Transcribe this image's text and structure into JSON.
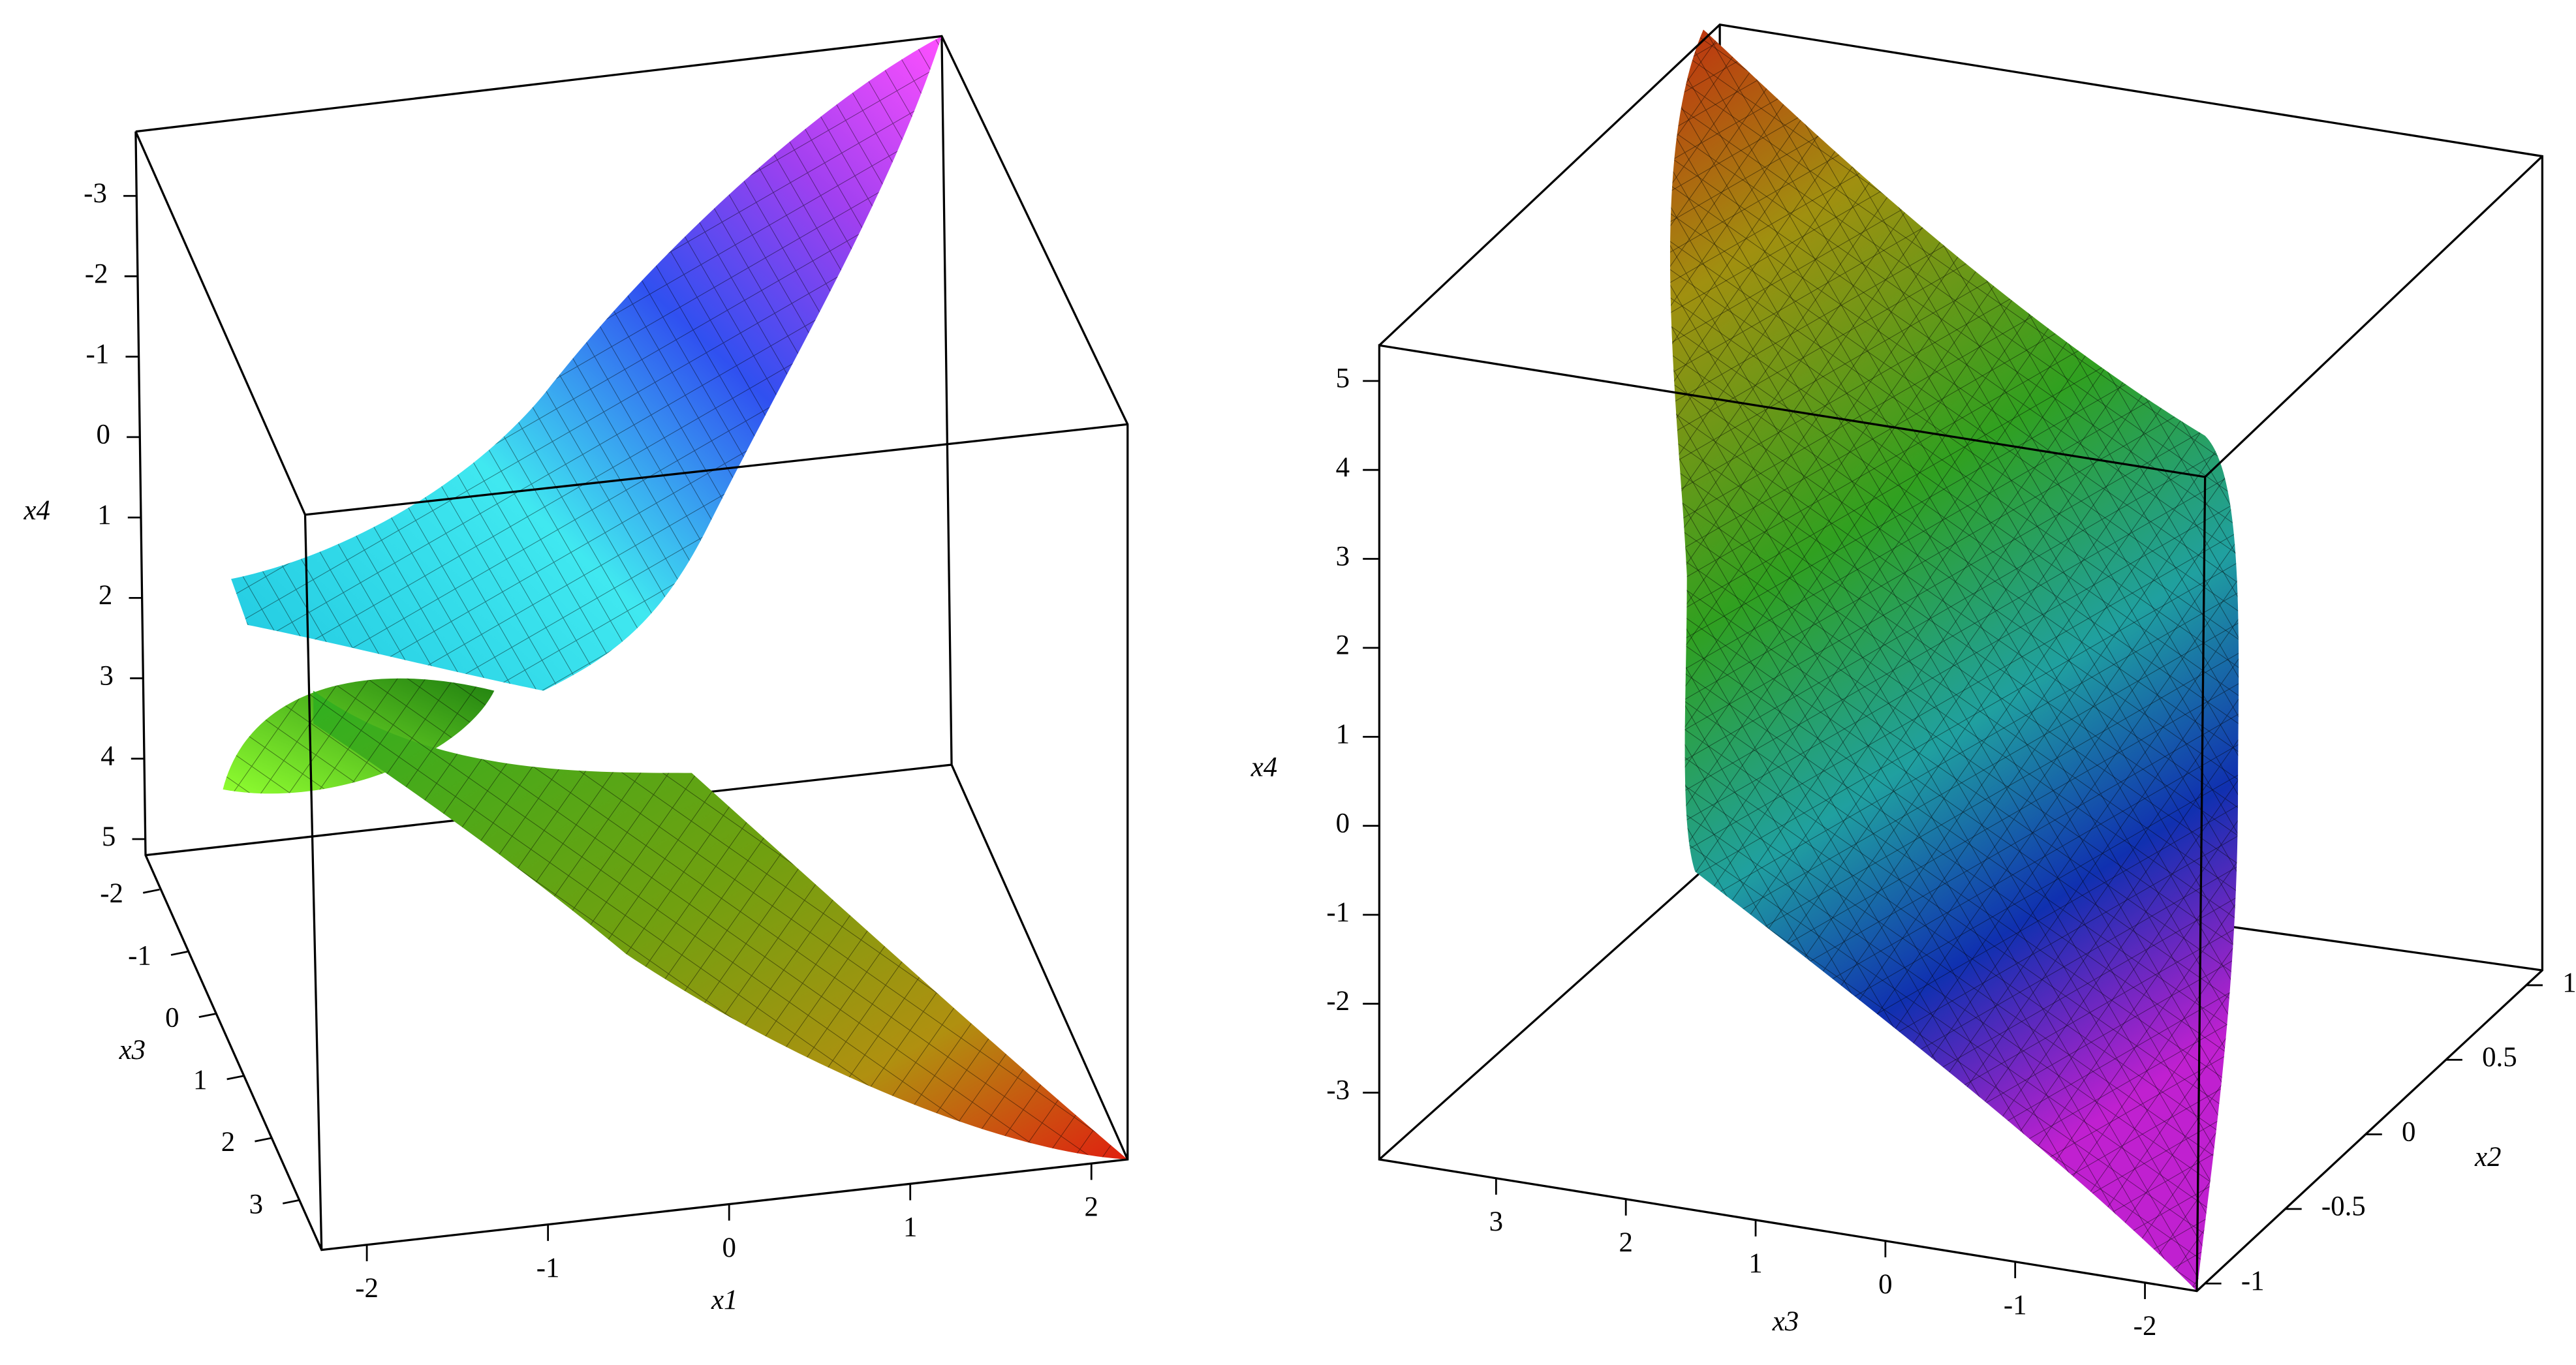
{
  "chart_data": [
    {
      "type": "surface3d",
      "axes": [
        {
          "label": "x4",
          "lim": [
            -3.8,
            5.2
          ],
          "ticks": [
            -3,
            -2,
            -1,
            0,
            1,
            2,
            3,
            4,
            5
          ]
        },
        {
          "label": "x3",
          "lim": [
            -2.5,
            3.8
          ],
          "ticks": [
            -2,
            -1,
            0,
            1,
            2,
            3
          ]
        },
        {
          "label": "x1",
          "lim": [
            -2.25,
            2.2
          ],
          "ticks": [
            -2,
            -1,
            0,
            1,
            2
          ]
        }
      ]
    },
    {
      "type": "surface3d",
      "axes": [
        {
          "label": "x4",
          "lim": [
            -3.75,
            5.4
          ],
          "ticks": [
            -3,
            -2,
            -1,
            0,
            1,
            2,
            3,
            4,
            5
          ]
        },
        {
          "label": "x3",
          "lim": [
            -2.4,
            3.9
          ],
          "ticks": [
            -2,
            -1,
            0,
            1,
            2,
            3
          ]
        },
        {
          "label": "x2",
          "lim": [
            -1.05,
            1.1
          ],
          "ticks": [
            -1,
            -0.5,
            0,
            0.5,
            1
          ]
        }
      ]
    }
  ]
}
